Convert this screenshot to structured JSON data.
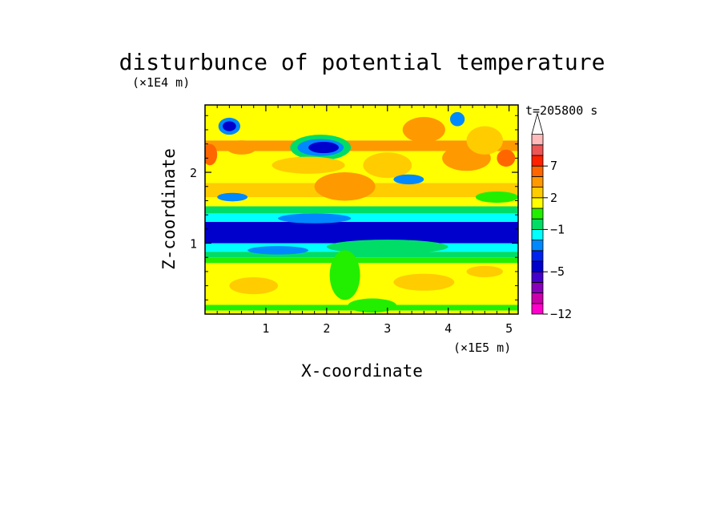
{
  "chart_data": {
    "type": "heatmap",
    "title": "disturbunce of potential temperature",
    "xlabel": "X-coordinate",
    "ylabel": "Z-coordinate",
    "x_unit": "(×1E5 m)",
    "y_unit": "(×1E4 m)",
    "time_label": "t=205800 s",
    "xlim": [
      0,
      5.15
    ],
    "ylim": [
      0,
      2.95
    ],
    "x_ticks": [
      "1",
      "2",
      "3",
      "4",
      "5"
    ],
    "y_ticks": [
      "1",
      "2"
    ],
    "colorbar": {
      "levels": [
        -12,
        -11,
        -9,
        -7,
        -5,
        -4,
        -3,
        -2,
        -1,
        0,
        1,
        2,
        3,
        5,
        7,
        9,
        11
      ],
      "colors": [
        "#ff00cc",
        "#cc00aa",
        "#8800bb",
        "#4400cc",
        "#0000cc",
        "#0022ee",
        "#0088ff",
        "#00ffff",
        "#00dd66",
        "#22ee00",
        "#ffff00",
        "#ffcc00",
        "#ff9900",
        "#ff6600",
        "#ff2200",
        "#ee5555",
        "#ffbbbb"
      ],
      "labels": [
        "-12",
        "-5",
        "-1",
        "2",
        "7"
      ],
      "extend": "max"
    },
    "bands": [
      {
        "z": [
          0.0,
          0.05
        ],
        "level": 1
      },
      {
        "z": [
          0.05,
          0.13
        ],
        "level": 0
      },
      {
        "z": [
          0.13,
          0.72
        ],
        "level": 1
      },
      {
        "z": [
          0.72,
          0.8
        ],
        "level": 0
      },
      {
        "z": [
          0.8,
          0.88
        ],
        "level": -1
      },
      {
        "z": [
          0.88,
          1.0
        ],
        "level": -2
      },
      {
        "z": [
          1.0,
          1.3
        ],
        "level": -5
      },
      {
        "z": [
          1.3,
          1.42
        ],
        "level": -2
      },
      {
        "z": [
          1.42,
          1.52
        ],
        "level": -1
      },
      {
        "z": [
          1.52,
          1.65
        ],
        "level": 1
      },
      {
        "z": [
          1.65,
          1.85
        ],
        "level": 2
      },
      {
        "z": [
          1.85,
          2.3
        ],
        "level": 1
      },
      {
        "z": [
          2.3,
          2.45
        ],
        "level": 3
      },
      {
        "z": [
          2.45,
          2.95
        ],
        "level": 1
      }
    ],
    "blobs": [
      {
        "x": 0.4,
        "z": 2.65,
        "rx": 0.18,
        "rz": 0.12,
        "level": -3
      },
      {
        "x": 0.4,
        "z": 2.65,
        "rx": 0.11,
        "rz": 0.07,
        "level": -5
      },
      {
        "x": 0.6,
        "z": 2.35,
        "rx": 0.25,
        "rz": 0.1,
        "level": 3
      },
      {
        "x": 0.08,
        "z": 2.25,
        "rx": 0.12,
        "rz": 0.15,
        "level": 5
      },
      {
        "x": 0.45,
        "z": 1.65,
        "rx": 0.25,
        "rz": 0.06,
        "level": -3
      },
      {
        "x": 1.9,
        "z": 2.35,
        "rx": 0.5,
        "rz": 0.18,
        "level": -1
      },
      {
        "x": 1.9,
        "z": 2.35,
        "rx": 0.38,
        "rz": 0.12,
        "level": -3
      },
      {
        "x": 1.95,
        "z": 2.35,
        "rx": 0.25,
        "rz": 0.08,
        "level": -5
      },
      {
        "x": 1.7,
        "z": 2.1,
        "rx": 0.6,
        "rz": 0.12,
        "level": 2
      },
      {
        "x": 2.3,
        "z": 1.8,
        "rx": 0.5,
        "rz": 0.2,
        "level": 3
      },
      {
        "x": 3.0,
        "z": 2.1,
        "rx": 0.4,
        "rz": 0.18,
        "level": 2
      },
      {
        "x": 3.35,
        "z": 1.9,
        "rx": 0.25,
        "rz": 0.07,
        "level": -3
      },
      {
        "x": 3.6,
        "z": 2.6,
        "rx": 0.35,
        "rz": 0.18,
        "level": 3
      },
      {
        "x": 4.3,
        "z": 2.2,
        "rx": 0.4,
        "rz": 0.18,
        "level": 3
      },
      {
        "x": 4.6,
        "z": 2.45,
        "rx": 0.3,
        "rz": 0.2,
        "level": 2
      },
      {
        "x": 4.15,
        "z": 2.75,
        "rx": 0.12,
        "rz": 0.1,
        "level": -3
      },
      {
        "x": 4.95,
        "z": 2.2,
        "rx": 0.15,
        "rz": 0.12,
        "level": 5
      },
      {
        "x": 4.8,
        "z": 1.65,
        "rx": 0.35,
        "rz": 0.08,
        "level": 0
      },
      {
        "x": 3.0,
        "z": 0.95,
        "rx": 1.0,
        "rz": 0.1,
        "level": -1
      },
      {
        "x": 1.8,
        "z": 1.35,
        "rx": 0.6,
        "rz": 0.07,
        "level": -3
      },
      {
        "x": 1.2,
        "z": 0.9,
        "rx": 0.5,
        "rz": 0.06,
        "level": -3
      },
      {
        "x": 2.3,
        "z": 0.55,
        "rx": 0.25,
        "rz": 0.35,
        "level": 0
      },
      {
        "x": 0.8,
        "z": 0.4,
        "rx": 0.4,
        "rz": 0.12,
        "level": 2
      },
      {
        "x": 3.6,
        "z": 0.45,
        "rx": 0.5,
        "rz": 0.12,
        "level": 2
      },
      {
        "x": 2.75,
        "z": 0.12,
        "rx": 0.4,
        "rz": 0.1,
        "level": 0
      },
      {
        "x": 4.6,
        "z": 0.6,
        "rx": 0.3,
        "rz": 0.08,
        "level": 2
      }
    ]
  }
}
